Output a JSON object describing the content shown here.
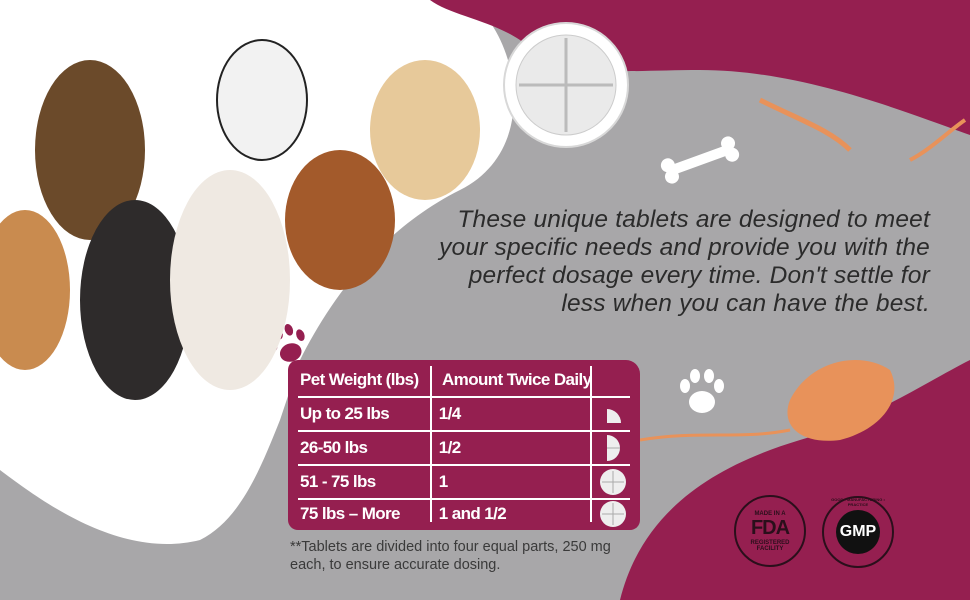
{
  "headline": "These unique tablets are designed to meet your specific needs and provide you with the perfect dosage every time. Don't settle for less when you can have the best.",
  "dosage_table": {
    "headers": [
      "Pet Weight (lbs)",
      "Amount Twice Daily",
      ""
    ],
    "rows": [
      {
        "weight": "Up to 25 lbs",
        "amount": "1/4",
        "tablet_icon": "quarter-tablet"
      },
      {
        "weight": "26-50 lbs",
        "amount": "1/2",
        "tablet_icon": "half-tablet"
      },
      {
        "weight": "51 - 75 lbs",
        "amount": "1",
        "tablet_icon": "whole-tablet"
      },
      {
        "weight": "75 lbs – More",
        "amount": "1 and 1/2",
        "tablet_icon": "whole-tablet"
      }
    ]
  },
  "note": "**Tablets are divided into four equal parts, 250 mg each, to ensure accurate dosing.",
  "badges": {
    "fda": {
      "top": "MADE IN A",
      "mark": "FDA",
      "bottom1": "REGISTERED",
      "bottom2": "FACILITY"
    },
    "gmp": {
      "mark": "GMP",
      "ring": "GOOD • MANUFACTURING • PRACTICE"
    }
  },
  "colors": {
    "magenta": "#951f50",
    "gray": "#a8a7a9",
    "orange": "#e8925a",
    "white": "#ffffff"
  }
}
